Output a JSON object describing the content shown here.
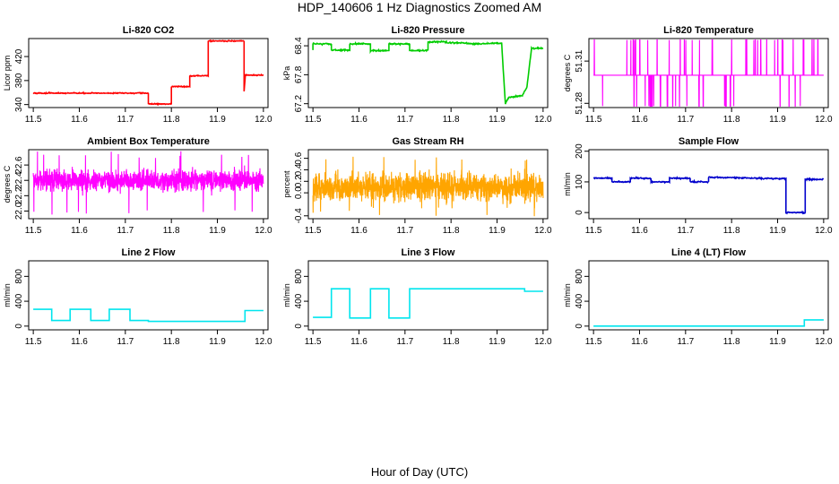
{
  "title": "HDP_140606  1 Hz Diagnostics Zoomed AM",
  "xlabel": "Hour of Day (UTC)",
  "chart_data": [
    {
      "type": "line",
      "title": "Li-820 CO2",
      "ylabel": "Licor ppm",
      "color": "#ff0000",
      "x_ticks": [
        "11.5",
        "11.6",
        "11.7",
        "11.8",
        "11.9",
        "12.0"
      ],
      "xlim": [
        11.49,
        12.01
      ],
      "y_ticks": [
        "340",
        "380",
        "420"
      ],
      "y_tick_values": [
        340,
        380,
        420
      ],
      "ylim": [
        335,
        450
      ],
      "series": [
        {
          "name": "CO2",
          "style": "step",
          "noise": 0.6,
          "x": [
            11.5,
            11.75,
            11.75,
            11.8,
            11.8,
            11.84,
            11.84,
            11.88,
            11.88,
            11.958,
            11.958,
            11.961,
            11.961,
            12.0
          ],
          "y": [
            359,
            359,
            341,
            341,
            370,
            370,
            388,
            388,
            446,
            446,
            362,
            390,
            389,
            389
          ]
        }
      ]
    },
    {
      "type": "line",
      "title": "Li-820 Pressure",
      "ylabel": "kPa",
      "color": "#00cc00",
      "x_ticks": [
        "11.5",
        "11.6",
        "11.7",
        "11.8",
        "11.9",
        "12.0"
      ],
      "xlim": [
        11.49,
        12.01
      ],
      "y_ticks": [
        "67.2",
        "67.8",
        "68.4"
      ],
      "y_tick_values": [
        67.2,
        67.8,
        68.4
      ],
      "ylim": [
        67.12,
        68.55
      ],
      "series": [
        {
          "name": "Pressure",
          "style": "step",
          "noise": 0.01,
          "x": [
            11.5,
            11.5,
            11.54,
            11.54,
            11.58,
            11.58,
            11.625,
            11.625,
            11.665,
            11.665,
            11.71,
            11.71,
            11.75,
            11.75,
            11.79,
            11.79,
            11.835,
            11.835,
            11.88,
            11.88,
            11.91,
            11.918,
            11.925,
            11.94,
            11.955,
            11.965,
            11.975,
            12.0
          ],
          "y": [
            68.3,
            68.44,
            68.44,
            68.31,
            68.31,
            68.44,
            68.44,
            68.3,
            68.3,
            68.44,
            68.44,
            68.3,
            68.3,
            68.48,
            68.48,
            68.46,
            68.46,
            68.44,
            68.44,
            68.45,
            68.45,
            67.2,
            67.33,
            67.35,
            67.37,
            67.55,
            68.35,
            68.35
          ]
        }
      ]
    },
    {
      "type": "line",
      "title": "Li-820 Temperature",
      "ylabel": "degrees C",
      "color": "#ff00ff",
      "x_ticks": [
        "11.5",
        "11.6",
        "11.7",
        "11.8",
        "11.9",
        "12.0"
      ],
      "xlim": [
        11.49,
        12.01
      ],
      "y_ticks": [
        "51.28",
        "51.31"
      ],
      "y_tick_values": [
        51.28,
        51.31
      ],
      "ylim": [
        51.277,
        51.326
      ],
      "series": [
        {
          "name": "Temperature",
          "style": "binary",
          "base": 51.3,
          "up": 51.325,
          "down": 51.278
        }
      ]
    },
    {
      "type": "line",
      "title": "Ambient Box Temperature",
      "ylabel": "degrees C",
      "color": "#ff00ff",
      "x_ticks": [
        "11.5",
        "11.6",
        "11.7",
        "11.8",
        "11.9",
        "12.0"
      ],
      "xlim": [
        11.49,
        12.01
      ],
      "y_ticks": [
        "22.0",
        "22.2",
        "22.4",
        "22.6"
      ],
      "y_tick_values": [
        22.0,
        22.2,
        22.4,
        22.6
      ],
      "ylim": [
        21.9,
        22.8
      ],
      "series": [
        {
          "name": "Box Temp",
          "style": "noise",
          "mean": 22.4,
          "sd": 0.09,
          "lo": 21.95,
          "hi": 22.78
        }
      ]
    },
    {
      "type": "line",
      "title": "Gas Stream RH",
      "ylabel": "percent",
      "color": "#ffa500",
      "x_ticks": [
        "11.5",
        "11.6",
        "11.7",
        "11.8",
        "11.9",
        "12.0"
      ],
      "xlim": [
        11.49,
        12.01
      ],
      "y_ticks": [
        "-0.4",
        "0.0",
        "0.2",
        "0.4",
        "0.6"
      ],
      "y_tick_values": [
        -0.4,
        0.0,
        0.2,
        0.4,
        0.6
      ],
      "ylim": [
        -0.45,
        0.75
      ],
      "series": [
        {
          "name": "RH",
          "style": "noise",
          "mean": 0.1,
          "sd": 0.16,
          "lo": -0.42,
          "hi": 0.72
        }
      ]
    },
    {
      "type": "line",
      "title": "Sample Flow",
      "ylabel": "ml/min",
      "color": "#0000cc",
      "x_ticks": [
        "11.5",
        "11.6",
        "11.7",
        "11.8",
        "11.9",
        "12.0"
      ],
      "xlim": [
        11.49,
        12.01
      ],
      "y_ticks": [
        "0",
        "100",
        "200"
      ],
      "y_tick_values": [
        0,
        100,
        200
      ],
      "ylim": [
        -20,
        205
      ],
      "series": [
        {
          "name": "Sample Flow",
          "style": "step",
          "noise": 1.5,
          "x": [
            11.5,
            11.54,
            11.54,
            11.58,
            11.58,
            11.625,
            11.625,
            11.665,
            11.665,
            11.71,
            11.71,
            11.75,
            11.75,
            11.918,
            11.918,
            11.96,
            11.96,
            12.0
          ],
          "y": [
            112,
            112,
            100,
            100,
            112,
            112,
            100,
            100,
            112,
            112,
            100,
            100,
            115,
            110,
            0,
            0,
            108,
            108
          ]
        }
      ]
    },
    {
      "type": "line",
      "title": "Line 2 Flow",
      "ylabel": "ml/min",
      "color": "#00e5ee",
      "x_ticks": [
        "11.5",
        "11.6",
        "11.7",
        "11.8",
        "11.9",
        "12.0"
      ],
      "xlim": [
        11.49,
        12.01
      ],
      "y_ticks": [
        "0",
        "400",
        "800"
      ],
      "y_tick_values": [
        0,
        400,
        800
      ],
      "ylim": [
        -60,
        1050
      ],
      "series": [
        {
          "name": "Line 2",
          "style": "step",
          "noise": 0,
          "x": [
            11.5,
            11.54,
            11.54,
            11.58,
            11.58,
            11.625,
            11.625,
            11.665,
            11.665,
            11.71,
            11.71,
            11.75,
            11.75,
            11.96,
            11.96,
            12.0
          ],
          "y": [
            270,
            270,
            90,
            90,
            270,
            270,
            90,
            90,
            270,
            270,
            90,
            90,
            75,
            75,
            250,
            250
          ]
        }
      ]
    },
    {
      "type": "line",
      "title": "Line 3 Flow",
      "ylabel": "ml/min",
      "color": "#00e5ee",
      "x_ticks": [
        "11.5",
        "11.6",
        "11.7",
        "11.8",
        "11.9",
        "12.0"
      ],
      "xlim": [
        11.49,
        12.01
      ],
      "y_ticks": [
        "0",
        "400",
        "800"
      ],
      "y_tick_values": [
        0,
        400,
        800
      ],
      "ylim": [
        -60,
        1050
      ],
      "series": [
        {
          "name": "Line 3",
          "style": "step",
          "noise": 0,
          "x": [
            11.5,
            11.54,
            11.54,
            11.58,
            11.58,
            11.625,
            11.625,
            11.665,
            11.665,
            11.71,
            11.71,
            11.96,
            11.96,
            12.0
          ],
          "y": [
            140,
            140,
            600,
            600,
            130,
            130,
            600,
            600,
            130,
            130,
            600,
            600,
            560,
            560
          ]
        }
      ]
    },
    {
      "type": "line",
      "title": "Line 4 (LT) Flow",
      "ylabel": "ml/min",
      "color": "#00e5ee",
      "x_ticks": [
        "11.5",
        "11.6",
        "11.7",
        "11.8",
        "11.9",
        "12.0"
      ],
      "xlim": [
        11.49,
        12.01
      ],
      "y_ticks": [
        "0",
        "400",
        "800"
      ],
      "y_tick_values": [
        0,
        400,
        800
      ],
      "ylim": [
        -60,
        1050
      ],
      "series": [
        {
          "name": "Line 4",
          "style": "step",
          "noise": 0,
          "x": [
            11.5,
            11.958,
            11.958,
            12.0
          ],
          "y": [
            0,
            0,
            100,
            100
          ]
        }
      ]
    }
  ]
}
